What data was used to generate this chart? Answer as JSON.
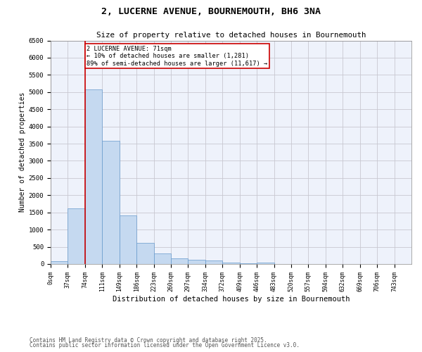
{
  "title": "2, LUCERNE AVENUE, BOURNEMOUTH, BH6 3NA",
  "subtitle": "Size of property relative to detached houses in Bournemouth",
  "xlabel": "Distribution of detached houses by size in Bournemouth",
  "ylabel": "Number of detached properties",
  "bar_labels": [
    "0sqm",
    "37sqm",
    "74sqm",
    "111sqm",
    "149sqm",
    "186sqm",
    "223sqm",
    "260sqm",
    "297sqm",
    "334sqm",
    "372sqm",
    "409sqm",
    "446sqm",
    "483sqm",
    "520sqm",
    "557sqm",
    "594sqm",
    "632sqm",
    "669sqm",
    "706sqm",
    "743sqm"
  ],
  "bar_values": [
    75,
    1620,
    5080,
    3580,
    1420,
    610,
    310,
    155,
    120,
    95,
    40,
    25,
    50,
    0,
    0,
    0,
    0,
    0,
    0,
    0,
    0
  ],
  "bar_color": "#c5d9f0",
  "bar_edge_color": "#6699cc",
  "subject_line_x_label": "74sqm",
  "subject_line_color": "#cc0000",
  "annotation_text": "2 LUCERNE AVENUE: 71sqm\n← 10% of detached houses are smaller (1,281)\n89% of semi-detached houses are larger (11,617) →",
  "annotation_box_color": "#cc0000",
  "ylim": [
    0,
    6500
  ],
  "yticks": [
    0,
    500,
    1000,
    1500,
    2000,
    2500,
    3000,
    3500,
    4000,
    4500,
    5000,
    5500,
    6000,
    6500
  ],
  "grid_color": "#c8c8d0",
  "bg_color": "#eef2fb",
  "footnote1": "Contains HM Land Registry data © Crown copyright and database right 2025.",
  "footnote2": "Contains public sector information licensed under the Open Government Licence v3.0."
}
